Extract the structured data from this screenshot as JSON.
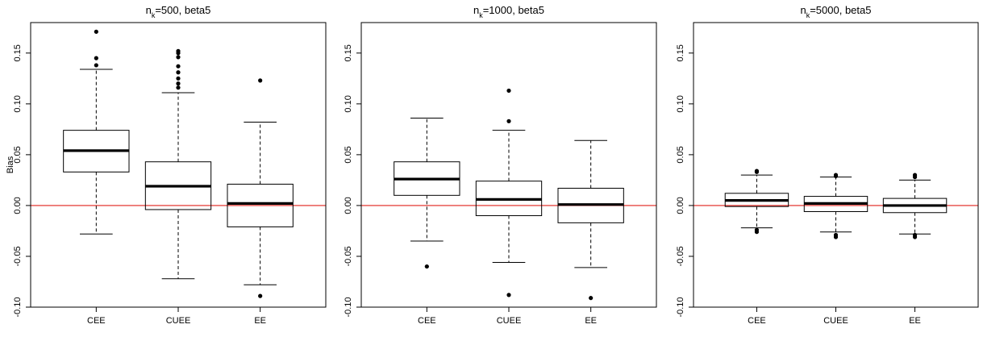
{
  "chart_data": [
    {
      "type": "boxplot",
      "title_main": "n",
      "title_sub": "k",
      "title_rest": "=500, beta5",
      "ylabel": "Bias",
      "ylim": [
        -0.1,
        0.18
      ],
      "yticks": [
        -0.1,
        -0.05,
        0.0,
        0.05,
        0.1,
        0.15
      ],
      "ytick_labels": [
        "-0.10",
        "-0.05",
        "0.00",
        "0.05",
        "0.10",
        "0.15"
      ],
      "reference_line": 0.0,
      "reference_color": "#e0201b",
      "categories": [
        "CEE",
        "CUEE",
        "EE"
      ],
      "boxes": [
        {
          "whisker_low": -0.028,
          "q1": 0.033,
          "median": 0.054,
          "q3": 0.074,
          "whisker_high": 0.134,
          "outliers": [
            0.138,
            0.145,
            0.171
          ]
        },
        {
          "whisker_low": -0.072,
          "q1": -0.004,
          "median": 0.019,
          "q3": 0.043,
          "whisker_high": 0.111,
          "outliers": [
            0.116,
            0.12,
            0.125,
            0.131,
            0.137,
            0.146,
            0.15,
            0.152
          ]
        },
        {
          "whisker_low": -0.078,
          "q1": -0.021,
          "median": 0.002,
          "q3": 0.021,
          "whisker_high": 0.082,
          "outliers": [
            0.123,
            -0.089
          ]
        }
      ]
    },
    {
      "type": "boxplot",
      "title_main": "n",
      "title_sub": "k",
      "title_rest": "=1000, beta5",
      "ylabel": "",
      "ylim": [
        -0.1,
        0.18
      ],
      "yticks": [
        -0.1,
        -0.05,
        0.0,
        0.05,
        0.1,
        0.15
      ],
      "ytick_labels": [
        "-0.10",
        "-0.05",
        "0.00",
        "0.05",
        "0.10",
        "0.15"
      ],
      "reference_line": 0.0,
      "reference_color": "#e0201b",
      "categories": [
        "CEE",
        "CUEE",
        "EE"
      ],
      "boxes": [
        {
          "whisker_low": -0.035,
          "q1": 0.01,
          "median": 0.026,
          "q3": 0.043,
          "whisker_high": 0.086,
          "outliers": [
            -0.06
          ]
        },
        {
          "whisker_low": -0.056,
          "q1": -0.01,
          "median": 0.006,
          "q3": 0.024,
          "whisker_high": 0.074,
          "outliers": [
            0.083,
            0.113,
            -0.088
          ]
        },
        {
          "whisker_low": -0.061,
          "q1": -0.017,
          "median": 0.001,
          "q3": 0.017,
          "whisker_high": 0.064,
          "outliers": [
            -0.091
          ]
        }
      ]
    },
    {
      "type": "boxplot",
      "title_main": "n",
      "title_sub": "k",
      "title_rest": "=5000, beta5",
      "ylabel": "",
      "ylim": [
        -0.1,
        0.18
      ],
      "yticks": [
        -0.1,
        -0.05,
        0.0,
        0.05,
        0.1,
        0.15
      ],
      "ytick_labels": [
        "-0.10",
        "-0.05",
        "0.00",
        "0.05",
        "0.10",
        "0.15"
      ],
      "reference_line": 0.0,
      "reference_color": "#e0201b",
      "categories": [
        "CEE",
        "CUEE",
        "EE"
      ],
      "boxes": [
        {
          "whisker_low": -0.022,
          "q1": -0.001,
          "median": 0.005,
          "q3": 0.012,
          "whisker_high": 0.03,
          "outliers": [
            0.033,
            0.034,
            -0.024,
            -0.026
          ]
        },
        {
          "whisker_low": -0.026,
          "q1": -0.006,
          "median": 0.002,
          "q3": 0.009,
          "whisker_high": 0.028,
          "outliers": [
            0.029,
            0.03,
            -0.029,
            -0.031
          ]
        },
        {
          "whisker_low": -0.028,
          "q1": -0.007,
          "median": 0.0,
          "q3": 0.007,
          "whisker_high": 0.025,
          "outliers": [
            0.028,
            0.03,
            -0.029,
            -0.031
          ]
        }
      ]
    }
  ]
}
